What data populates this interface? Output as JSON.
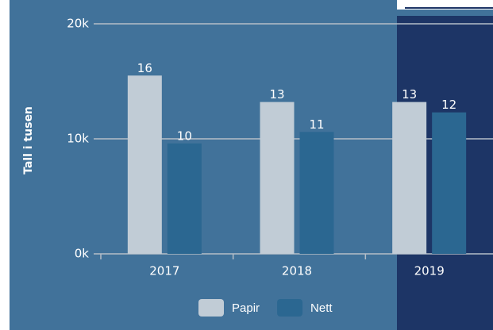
{
  "chart_data": {
    "type": "bar",
    "y_label": "Tall i tusen",
    "categories": [
      "2017",
      "2018",
      "2019"
    ],
    "series": [
      {
        "name": "Papir",
        "color": "#c1ccd6",
        "values": [
          15.5,
          13.2,
          13.2
        ],
        "value_labels": [
          "16",
          "13",
          "13"
        ]
      },
      {
        "name": "Nett",
        "color": "#2b6791",
        "values": [
          9.6,
          10.6,
          12.3
        ],
        "value_labels": [
          "10",
          "11",
          "12"
        ]
      }
    ],
    "ylim": [
      0,
      20
    ],
    "yticks": [
      {
        "value": 0,
        "label": "0k"
      },
      {
        "value": 10,
        "label": "10k"
      },
      {
        "value": 20,
        "label": "20k"
      }
    ],
    "grid": true,
    "legend": "bottom"
  }
}
